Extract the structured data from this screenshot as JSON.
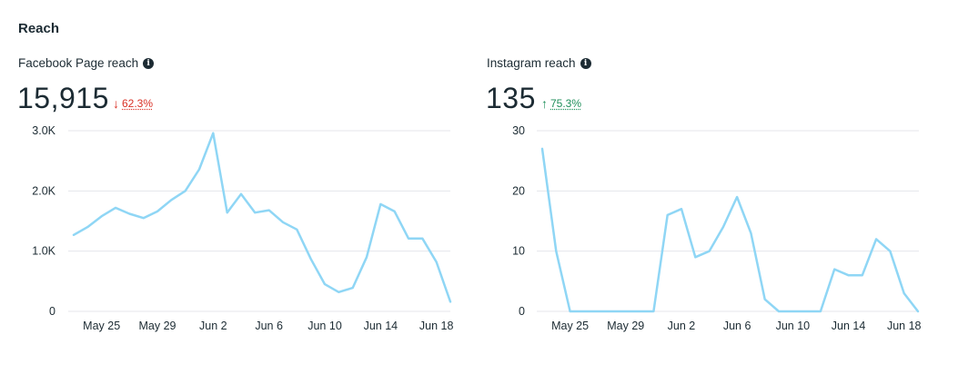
{
  "section_title": "Reach",
  "facebook": {
    "label": "Facebook Page reach",
    "value": "15,915",
    "change": "62.3%",
    "change_direction": "down",
    "info_icon": "info-icon"
  },
  "instagram": {
    "label": "Instagram reach",
    "value": "135",
    "change": "75.3%",
    "change_direction": "up",
    "info_icon": "info-icon"
  },
  "colors": {
    "line": "#8fd6f5",
    "grid": "#e4e6eb",
    "down": "#d93025",
    "up": "#1e8e5a"
  },
  "chart_data": [
    {
      "type": "line",
      "title": "Facebook Page reach",
      "x_tick_labels": [
        "May 25",
        "May 29",
        "Jun 2",
        "Jun 6",
        "Jun 10",
        "Jun 14",
        "Jun 18"
      ],
      "x_tick_index": [
        2,
        6,
        10,
        14,
        18,
        22,
        26
      ],
      "y_tick_labels": [
        "0",
        "1.0K",
        "2.0K",
        "3.0K"
      ],
      "y_tick_values": [
        0,
        1000,
        2000,
        3000
      ],
      "ylim": [
        0,
        3000
      ],
      "xlim": [
        0,
        27
      ],
      "series": [
        {
          "name": "Facebook Page reach",
          "values": [
            1270,
            1400,
            1580,
            1720,
            1620,
            1550,
            1660,
            1850,
            2000,
            2360,
            2960,
            1640,
            1950,
            1640,
            1680,
            1480,
            1360,
            870,
            450,
            320,
            390,
            900,
            1780,
            1660,
            1210,
            1210,
            820,
            160
          ]
        }
      ]
    },
    {
      "type": "line",
      "title": "Instagram reach",
      "x_tick_labels": [
        "May 25",
        "May 29",
        "Jun 2",
        "Jun 6",
        "Jun 10",
        "Jun 14",
        "Jun 18"
      ],
      "x_tick_index": [
        2,
        6,
        10,
        14,
        18,
        22,
        26
      ],
      "y_tick_labels": [
        "0",
        "10",
        "20",
        "30"
      ],
      "y_tick_values": [
        0,
        10,
        20,
        30
      ],
      "ylim": [
        0,
        30
      ],
      "xlim": [
        0,
        27
      ],
      "series": [
        {
          "name": "Instagram reach",
          "values": [
            27,
            10,
            0,
            0,
            0,
            0,
            0,
            0,
            0,
            16,
            17,
            9,
            10,
            14,
            19,
            13,
            2,
            0,
            0,
            0,
            0,
            7,
            6,
            6,
            12,
            10,
            3,
            0
          ]
        }
      ]
    }
  ]
}
